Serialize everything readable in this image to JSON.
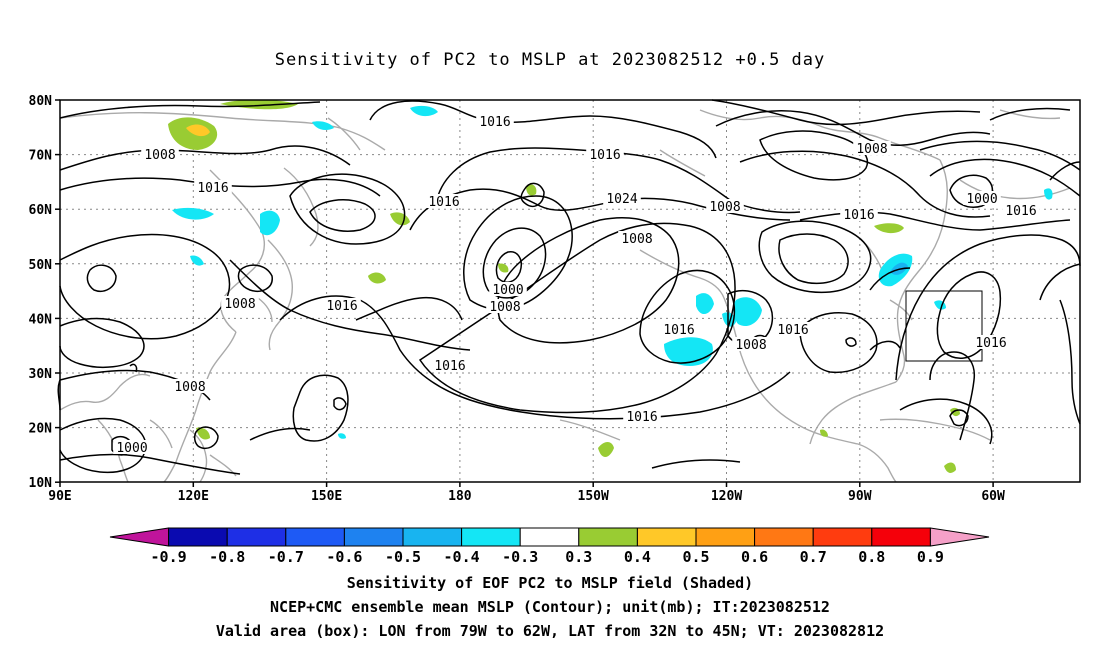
{
  "title": "Sensitivity of PC2 to MSLP at 2023082512 +0.5 day",
  "map": {
    "lat_labels": [
      "80N",
      "70N",
      "60N",
      "50N",
      "40N",
      "30N",
      "20N",
      "10N"
    ],
    "lon_labels": [
      "90E",
      "120E",
      "150E",
      "180",
      "150W",
      "120W",
      "90W",
      "60W"
    ],
    "contour_labels": [
      {
        "text": "1016"
      },
      {
        "text": "1008"
      },
      {
        "text": "1016"
      },
      {
        "text": "1008"
      },
      {
        "text": "1016"
      },
      {
        "text": "1016"
      },
      {
        "text": "1008"
      },
      {
        "text": "1000"
      },
      {
        "text": "1000"
      },
      {
        "text": "1008"
      },
      {
        "text": "1016"
      },
      {
        "text": "1008"
      },
      {
        "text": "1024"
      },
      {
        "text": "1000"
      },
      {
        "text": "1008"
      },
      {
        "text": "1016"
      },
      {
        "text": "1008"
      },
      {
        "text": "1016"
      },
      {
        "text": "1016"
      },
      {
        "text": "1016"
      },
      {
        "text": "1016"
      },
      {
        "text": "1016"
      },
      {
        "text": "1008"
      },
      {
        "text": "1016"
      }
    ],
    "valid_box": {
      "lon_west": "79W",
      "lon_east": "62W",
      "lat_south": "32N",
      "lat_north": "45N"
    }
  },
  "colorbar": {
    "labels": [
      "-0.9",
      "-0.8",
      "-0.7",
      "-0.6",
      "-0.5",
      "-0.4",
      "-0.3",
      "0.3",
      "0.4",
      "0.5",
      "0.6",
      "0.7",
      "0.8",
      "0.9"
    ],
    "colors": {
      "low_end": "#c0149b",
      "bins": [
        "#0a0ab0",
        "#1e2fe6",
        "#1e5af5",
        "#1e82f0",
        "#18b4f0",
        "#14e6f5",
        "#ffffff",
        "#99cc33",
        "#ffc828",
        "#ffa014",
        "#ff7814",
        "#ff3c0f",
        "#f5000a"
      ],
      "high_end": "#f5a0c8"
    }
  },
  "captions": [
    "Sensitivity of EOF PC2 to MSLP field (Shaded)",
    "NCEP+CMC ensemble mean MSLP (Contour); unit(mb); IT:2023082512",
    "Valid area (box): LON from 79W to 62W, LAT from 32N to 45N; VT: 2023082812"
  ]
}
